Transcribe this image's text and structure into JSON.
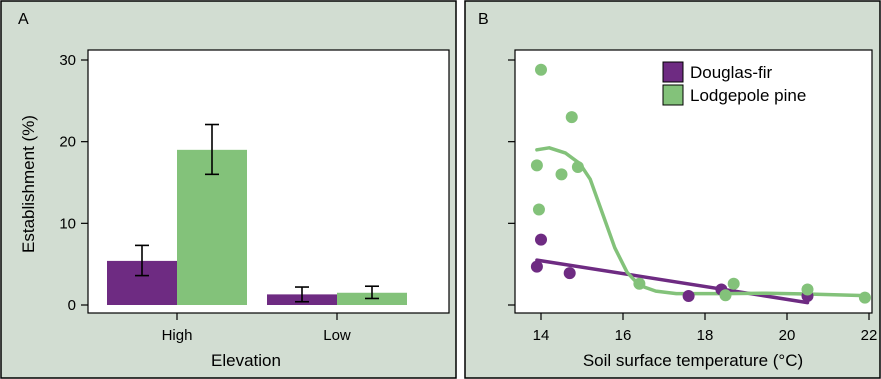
{
  "chart_data": [
    {
      "type": "bar",
      "panel_label": "A",
      "xlabel": "Elevation",
      "ylabel": "Establishment (%)",
      "categories": [
        "High",
        "Low"
      ],
      "ylim": [
        0,
        30
      ],
      "yticks": [
        0,
        10,
        20,
        30
      ],
      "grid": false,
      "series": [
        {
          "name": "Douglas-fir",
          "color": "#6e2b82",
          "values": [
            5.4,
            1.3
          ],
          "err_low": [
            3.6,
            0.4
          ],
          "err_high": [
            7.3,
            2.2
          ]
        },
        {
          "name": "Lodgepole pine",
          "color": "#83c27a",
          "values": [
            19.0,
            1.5
          ],
          "err_low": [
            16.0,
            0.8
          ],
          "err_high": [
            22.1,
            2.3
          ]
        }
      ]
    },
    {
      "type": "scatter",
      "panel_label": "B",
      "xlabel": "Soil surface temperature (°C)",
      "ylabel": "",
      "xlim": [
        13.8,
        22.2
      ],
      "ylim": [
        -0.5,
        30
      ],
      "xticks": [
        14,
        16,
        18,
        20,
        22
      ],
      "legend_position": "top-right",
      "grid": false,
      "series": [
        {
          "name": "Douglas-fir",
          "color": "#6e2b82",
          "points": [
            [
              13.9,
              4.7
            ],
            [
              14.0,
              8.0
            ],
            [
              14.7,
              3.9
            ],
            [
              17.6,
              1.1
            ],
            [
              18.4,
              1.9
            ],
            [
              20.5,
              1.1
            ]
          ],
          "trend": [
            [
              13.9,
              5.5
            ],
            [
              20.5,
              0.3
            ]
          ]
        },
        {
          "name": "Lodgepole pine",
          "color": "#83c27a",
          "points": [
            [
              13.9,
              17.1
            ],
            [
              13.95,
              11.7
            ],
            [
              14.0,
              28.8
            ],
            [
              14.5,
              16.0
            ],
            [
              14.75,
              23.0
            ],
            [
              14.9,
              16.9
            ],
            [
              16.4,
              2.6
            ],
            [
              18.5,
              1.2
            ],
            [
              18.7,
              2.6
            ],
            [
              20.5,
              1.9
            ],
            [
              21.9,
              0.9
            ]
          ],
          "trend": [
            [
              13.9,
              19.0
            ],
            [
              14.2,
              19.25
            ],
            [
              14.6,
              18.6
            ],
            [
              14.95,
              17.3
            ],
            [
              15.2,
              15.4
            ],
            [
              15.5,
              11.2
            ],
            [
              15.8,
              7.0
            ],
            [
              16.1,
              4.0
            ],
            [
              16.4,
              2.4
            ],
            [
              16.8,
              1.7
            ],
            [
              17.3,
              1.4
            ],
            [
              18.5,
              1.4
            ],
            [
              19.5,
              1.45
            ],
            [
              20.5,
              1.35
            ],
            [
              21.9,
              1.15
            ]
          ]
        }
      ]
    }
  ]
}
